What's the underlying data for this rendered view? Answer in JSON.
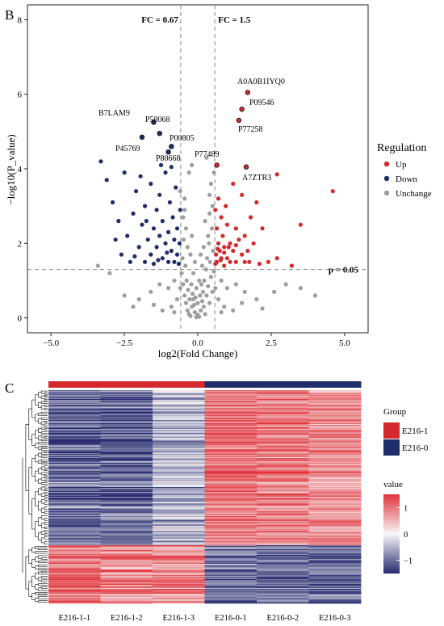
{
  "panels": {
    "volcano": {
      "letter": "B",
      "xlabel": "log2(Fold Change)",
      "ylabel": "−log10(P_value)",
      "xlim": [
        -5.8,
        5.8
      ],
      "ylim": [
        -0.4,
        8.4
      ],
      "xticks": [
        -5.0,
        -2.5,
        0.0,
        2.5,
        5.0
      ],
      "xtick_labels": [
        "−5.0",
        "−2.5",
        "0.0",
        "2.5",
        "5.0"
      ],
      "yticks": [
        0,
        2,
        4,
        6,
        8
      ],
      "ytick_labels": [
        "0",
        "2",
        "4",
        "6",
        "8"
      ],
      "thresholds": {
        "fc_low": -0.58,
        "fc_high": 0.58,
        "p_line": 1.3,
        "fc_low_label": "FC = 0.67",
        "fc_high_label": "FC = 1.5",
        "p_label": "p = 0.05"
      },
      "legend": {
        "title": "Regulation",
        "items": [
          {
            "label": "Up",
            "color": "#d42a2e"
          },
          {
            "label": "Down",
            "color": "#1f2d6b"
          },
          {
            "label": "Unchange",
            "color": "#9e9e9e"
          }
        ]
      }
    },
    "heatmap": {
      "letter": "C",
      "samples": [
        "E216-1-1",
        "E216-1-2",
        "E216-1-3",
        "E216-0-1",
        "E216-0-2",
        "E216-0-3"
      ],
      "group_legend": {
        "title": "Group",
        "items": [
          {
            "label": "E216-1",
            "color": "#d42a2e"
          },
          {
            "label": "E216-0",
            "color": "#1f2d6b"
          }
        ]
      },
      "value_legend": {
        "title": "value",
        "ticks": [
          1,
          0,
          -1
        ],
        "tick_labels": [
          "1",
          "0",
          "−1"
        ],
        "low_color": "#262a6e",
        "mid_color": "#f7f7f7",
        "high_color": "#e0323a"
      }
    }
  },
  "chart_data": [
    {
      "type": "scatter",
      "title": "",
      "xlabel": "log2(Fold Change)",
      "ylabel": "−log10(P_value)",
      "xlim": [
        -5.8,
        5.8
      ],
      "ylim": [
        -0.4,
        8.4
      ],
      "grid": false,
      "legend_position": "right",
      "labeled_points": [
        {
          "label": "A0A0B1IYQ0",
          "x": 1.7,
          "y": 6.05,
          "regulation": "Up"
        },
        {
          "label": "P09546",
          "x": 1.5,
          "y": 5.6,
          "regulation": "Up"
        },
        {
          "label": "P77258",
          "x": 1.4,
          "y": 5.3,
          "regulation": "Up"
        },
        {
          "label": "B7LAM9",
          "x": -1.5,
          "y": 5.25,
          "regulation": "Down"
        },
        {
          "label": "P58068",
          "x": -1.3,
          "y": 4.95,
          "regulation": "Down"
        },
        {
          "label": "P00805",
          "x": -0.9,
          "y": 4.6,
          "regulation": "Down"
        },
        {
          "label": "P45769",
          "x": -1.9,
          "y": 4.85,
          "regulation": "Down"
        },
        {
          "label": "P80668",
          "x": -1.0,
          "y": 4.45,
          "regulation": "Down"
        },
        {
          "label": "P77489",
          "x": 0.65,
          "y": 4.1,
          "regulation": "Up"
        },
        {
          "label": "A7ZTR3",
          "x": 1.65,
          "y": 4.05,
          "regulation": "Up"
        }
      ],
      "series": [
        {
          "name": "Up",
          "color": "#d42a2e",
          "points": [
            [
              4.6,
              3.4
            ],
            [
              3.5,
              2.5
            ],
            [
              2.7,
              3.85
            ],
            [
              3.2,
              1.4
            ],
            [
              2.7,
              1.6
            ],
            [
              2.4,
              1.5
            ],
            [
              2.2,
              2.4
            ],
            [
              2.0,
              3.1
            ],
            [
              1.9,
              2.0
            ],
            [
              1.8,
              2.7
            ],
            [
              1.7,
              1.8
            ],
            [
              1.6,
              2.2
            ],
            [
              1.6,
              1.5
            ],
            [
              1.5,
              1.7
            ],
            [
              1.5,
              3.3
            ],
            [
              1.4,
              2.1
            ],
            [
              1.3,
              1.5
            ],
            [
              1.3,
              2.4
            ],
            [
              1.2,
              1.8
            ],
            [
              1.2,
              3.6
            ],
            [
              1.1,
              1.5
            ],
            [
              1.1,
              2.0
            ],
            [
              1.0,
              2.5
            ],
            [
              1.0,
              1.6
            ],
            [
              0.95,
              3.0
            ],
            [
              0.9,
              1.9
            ],
            [
              0.9,
              1.4
            ],
            [
              0.85,
              2.2
            ],
            [
              0.8,
              1.6
            ],
            [
              0.8,
              2.7
            ],
            [
              0.75,
              1.8
            ],
            [
              0.7,
              2.0
            ],
            [
              0.7,
              3.2
            ],
            [
              0.65,
              1.5
            ],
            [
              0.65,
              2.4
            ],
            [
              0.62,
              1.7
            ],
            [
              0.6,
              2.9
            ],
            [
              0.6,
              1.45
            ],
            [
              0.9,
              1.75
            ],
            [
              1.05,
              1.9
            ],
            [
              0.78,
              1.55
            ],
            [
              0.68,
              1.85
            ],
            [
              1.3,
              1.95
            ],
            [
              2.1,
              1.45
            ],
            [
              1.75,
              1.5
            ]
          ]
        },
        {
          "name": "Down",
          "color": "#1f2d6b",
          "points": [
            [
              -3.3,
              4.2
            ],
            [
              -3.1,
              3.7
            ],
            [
              -2.9,
              3.1
            ],
            [
              -2.7,
              2.6
            ],
            [
              -2.6,
              1.7
            ],
            [
              -2.5,
              3.9
            ],
            [
              -2.4,
              2.2
            ],
            [
              -2.3,
              1.5
            ],
            [
              -2.2,
              2.8
            ],
            [
              -2.1,
              3.4
            ],
            [
              -2.0,
              1.9
            ],
            [
              -1.9,
              2.5
            ],
            [
              -1.8,
              1.5
            ],
            [
              -1.8,
              3.0
            ],
            [
              -1.7,
              2.1
            ],
            [
              -1.6,
              3.6
            ],
            [
              -1.6,
              1.7
            ],
            [
              -1.5,
              2.4
            ],
            [
              -1.5,
              1.45
            ],
            [
              -1.4,
              2.9
            ],
            [
              -1.4,
              1.9
            ],
            [
              -1.3,
              2.2
            ],
            [
              -1.3,
              3.3
            ],
            [
              -1.2,
              1.6
            ],
            [
              -1.2,
              2.6
            ],
            [
              -1.1,
              2.0
            ],
            [
              -1.1,
              3.9
            ],
            [
              -1.0,
              1.5
            ],
            [
              -1.0,
              2.3
            ],
            [
              -0.95,
              3.1
            ],
            [
              -0.9,
              1.8
            ],
            [
              -0.85,
              2.7
            ],
            [
              -0.8,
              1.5
            ],
            [
              -0.8,
              2.1
            ],
            [
              -0.75,
              3.5
            ],
            [
              -0.7,
              1.7
            ],
            [
              -0.7,
              2.4
            ],
            [
              -0.65,
              1.45
            ],
            [
              -0.62,
              2.0
            ],
            [
              -0.6,
              2.9
            ],
            [
              -1.75,
              2.6
            ],
            [
              -1.35,
              1.55
            ],
            [
              -1.05,
              1.75
            ],
            [
              -2.15,
              1.65
            ],
            [
              -2.8,
              2.1
            ],
            [
              -1.95,
              3.8
            ],
            [
              -0.9,
              4.05
            ],
            [
              -1.25,
              4.1
            ]
          ]
        },
        {
          "name": "Unchange",
          "color": "#9e9e9e",
          "points": [
            [
              -0.55,
              1.2
            ],
            [
              -0.5,
              0.9
            ],
            [
              -0.45,
              0.6
            ],
            [
              -0.4,
              0.4
            ],
            [
              -0.35,
              0.2
            ],
            [
              -0.3,
              0.1
            ],
            [
              -0.25,
              0.05
            ],
            [
              -0.2,
              0.3
            ],
            [
              -0.15,
              0.5
            ],
            [
              -0.1,
              0.15
            ],
            [
              -0.05,
              0.02
            ],
            [
              0.0,
              0.08
            ],
            [
              0.05,
              0.03
            ],
            [
              0.1,
              0.2
            ],
            [
              0.15,
              0.45
            ],
            [
              0.2,
              0.3
            ],
            [
              0.25,
              0.1
            ],
            [
              0.3,
              0.6
            ],
            [
              0.35,
              0.85
            ],
            [
              0.4,
              0.4
            ],
            [
              0.45,
              1.1
            ],
            [
              0.5,
              0.7
            ],
            [
              0.55,
              1.25
            ],
            [
              -0.52,
              1.6
            ],
            [
              -0.48,
              2.1
            ],
            [
              -0.42,
              1.4
            ],
            [
              -0.38,
              1.0
            ],
            [
              -0.33,
              0.75
            ],
            [
              -0.28,
              0.5
            ],
            [
              -0.22,
              0.9
            ],
            [
              -0.18,
              0.65
            ],
            [
              -0.12,
              0.35
            ],
            [
              -0.08,
              0.55
            ],
            [
              0.08,
              0.6
            ],
            [
              0.12,
              0.9
            ],
            [
              0.18,
              0.7
            ],
            [
              0.22,
              1.0
            ],
            [
              0.28,
              1.3
            ],
            [
              0.32,
              1.6
            ],
            [
              0.38,
              2.0
            ],
            [
              0.42,
              1.5
            ],
            [
              0.48,
              2.4
            ],
            [
              0.52,
              1.8
            ],
            [
              -0.5,
              2.7
            ],
            [
              -0.45,
              3.2
            ],
            [
              -0.3,
              3.9
            ],
            [
              0.3,
              4.3
            ],
            [
              0.5,
              3.0
            ],
            [
              0.45,
              3.6
            ],
            [
              -0.2,
              4.1
            ],
            [
              -0.8,
              1.0
            ],
            [
              -1.0,
              0.8
            ],
            [
              -1.3,
              0.9
            ],
            [
              -1.6,
              0.7
            ],
            [
              -2.0,
              0.5
            ],
            [
              -2.5,
              0.6
            ],
            [
              -3.0,
              1.2
            ],
            [
              -3.4,
              1.4
            ],
            [
              0.8,
              1.0
            ],
            [
              1.0,
              0.8
            ],
            [
              1.3,
              0.9
            ],
            [
              1.6,
              0.7
            ],
            [
              2.0,
              0.5
            ],
            [
              2.6,
              0.7
            ],
            [
              3.0,
              0.9
            ],
            [
              3.5,
              0.8
            ],
            [
              4.0,
              0.6
            ],
            [
              -0.7,
              0.5
            ],
            [
              -0.9,
              0.3
            ],
            [
              0.7,
              0.5
            ],
            [
              0.9,
              0.3
            ],
            [
              -1.2,
              0.2
            ],
            [
              1.2,
              0.2
            ],
            [
              -0.6,
              0.8
            ],
            [
              0.6,
              0.8
            ],
            [
              -0.35,
              1.9
            ],
            [
              0.35,
              2.2
            ],
            [
              -0.15,
              1.2
            ],
            [
              0.15,
              1.4
            ],
            [
              -0.25,
              1.7
            ],
            [
              0.25,
              2.6
            ],
            [
              -0.4,
              2.4
            ],
            [
              0.4,
              2.8
            ],
            [
              0.05,
              1.0
            ],
            [
              -0.05,
              0.8
            ],
            [
              -0.6,
              3.4
            ],
            [
              0.55,
              3.9
            ],
            [
              0.8,
              0.15
            ],
            [
              -0.8,
              0.15
            ],
            [
              1.5,
              0.4
            ],
            [
              -1.5,
              0.35
            ],
            [
              2.2,
              0.25
            ],
            [
              -2.2,
              0.3
            ],
            [
              0.1,
              1.7
            ],
            [
              -0.1,
              1.5
            ],
            [
              0.2,
              1.9
            ],
            [
              -0.2,
              2.2
            ],
            [
              0.4,
              3.3
            ],
            [
              -0.45,
              2.9
            ],
            [
              0.0,
              0.4
            ]
          ]
        }
      ]
    },
    {
      "type": "heatmap",
      "title": "",
      "x": [
        "E216-1-1",
        "E216-1-2",
        "E216-1-3",
        "E216-0-1",
        "E216-0-2",
        "E216-0-3"
      ],
      "groups": [
        "E216-1",
        "E216-1",
        "E216-1",
        "E216-0",
        "E216-0",
        "E216-0"
      ],
      "value_range": [
        -1.5,
        1.5
      ],
      "legend_position": "right",
      "row_blocks": [
        {
          "rows": 160,
          "values": [
            -1.05,
            -1.05,
            -0.45,
            1.0,
            0.9,
            0.75
          ]
        },
        {
          "rows": 60,
          "values": [
            1.1,
            0.9,
            0.85,
            -0.95,
            -1.0,
            -1.05
          ]
        }
      ]
    }
  ]
}
